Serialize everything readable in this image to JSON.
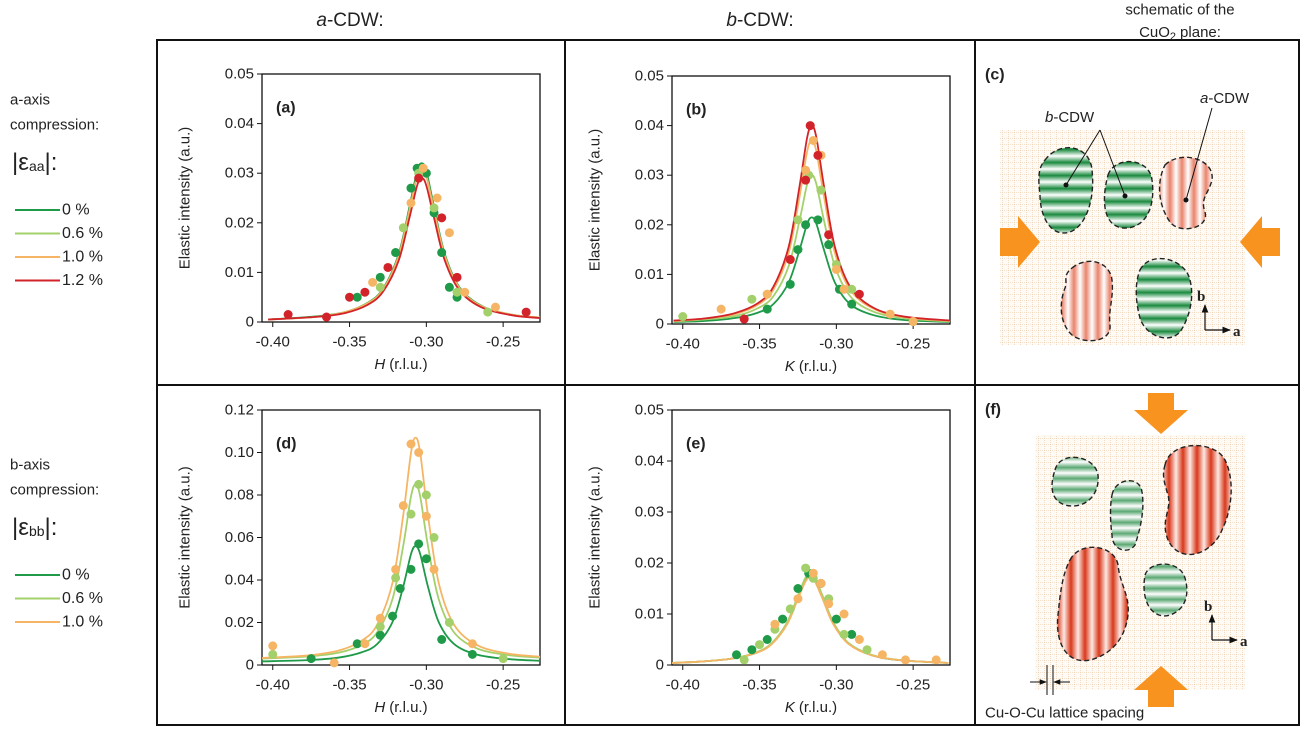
{
  "column_headers": [
    [
      "a",
      "-CDW:"
    ],
    [
      "b",
      "-CDW:"
    ]
  ],
  "schematic_header": [
    "schematic of the",
    "CuO",
    "2",
    "plane:"
  ],
  "legends": [
    {
      "lines": [
        "a-axis",
        "compression:"
      ],
      "symbol": [
        "|ε",
        "aa",
        "|:"
      ],
      "entries": [
        {
          "label": "0 %",
          "color": "#1e9a48"
        },
        {
          "label": "0.6 %",
          "color": "#a3d06a"
        },
        {
          "label": "1.0 %",
          "color": "#f5b565"
        },
        {
          "label": "1.2 %",
          "color": "#d2232a"
        }
      ]
    },
    {
      "lines": [
        "b-axis",
        "compression:"
      ],
      "symbol": [
        "|ε",
        "bb",
        "|:"
      ],
      "entries": [
        {
          "label": "0 %",
          "color": "#1e9a48"
        },
        {
          "label": "0.6 %",
          "color": "#a3d06a"
        },
        {
          "label": "1.0 %",
          "color": "#f5b565"
        }
      ]
    }
  ],
  "schematics": {
    "c": {
      "label": "(c)",
      "b_cdw": [
        "b",
        "-CDW"
      ],
      "a_cdw": [
        "a",
        "-CDW"
      ],
      "axis_b": "b",
      "axis_a": "a"
    },
    "f": {
      "label": "(f)",
      "axis_b": "b",
      "axis_a": "a",
      "spacing": "Cu-O-Cu lattice spacing"
    }
  },
  "chart_data": [
    {
      "type": "scatter",
      "panel_label": "(a)",
      "ylabel": "Elastic intensity (a.u.)",
      "xlabel": [
        "H",
        "(r.l.u.)"
      ],
      "xlim": [
        -0.407,
        -0.226
      ],
      "ylim": [
        0,
        0.05
      ],
      "xticks": [
        {
          "value": -0.4,
          "label": "-0.40"
        },
        -0.35,
        {
          "value": -0.3,
          "label": "-0.30"
        },
        -0.25
      ],
      "yticks": [
        0,
        0.01,
        0.02,
        0.03,
        0.04,
        0.05
      ],
      "fit_x": [
        -0.403,
        -0.373,
        -0.353,
        -0.338,
        -0.328,
        -0.318,
        -0.311,
        -0.306,
        -0.303,
        -0.3,
        -0.295,
        -0.288,
        -0.278,
        -0.263,
        -0.243,
        -0.226
      ],
      "series": [
        {
          "color": "#1e9a48",
          "x": [
            -0.345,
            -0.33,
            -0.32,
            -0.31,
            -0.306,
            -0.3,
            -0.295,
            -0.29,
            -0.285,
            -0.28
          ],
          "values": [
            0.005,
            0.009,
            0.014,
            0.027,
            0.031,
            0.03,
            0.022,
            0.014,
            0.007,
            0.005
          ],
          "fit_values": [
            0.0005,
            0.0011,
            0.002,
            0.0039,
            0.0068,
            0.0137,
            0.0232,
            0.0304,
            0.032,
            0.0304,
            0.0232,
            0.0137,
            0.0068,
            0.0031,
            0.0014,
            0.0009
          ]
        },
        {
          "color": "#a3d06a",
          "x": [
            -0.33,
            -0.315,
            -0.305,
            -0.295,
            -0.28,
            -0.26
          ],
          "values": [
            0.007,
            0.019,
            0.03,
            0.023,
            0.006,
            0.002
          ],
          "fit_values": [
            0.0005,
            0.001,
            0.002,
            0.0038,
            0.0066,
            0.0133,
            0.0225,
            0.0294,
            0.031,
            0.0294,
            0.0225,
            0.0133,
            0.0066,
            0.003,
            0.0014,
            0.0009
          ]
        },
        {
          "color": "#f5b565",
          "x": [
            -0.335,
            -0.31,
            -0.302,
            -0.293,
            -0.285,
            -0.275,
            -0.255
          ],
          "values": [
            0.008,
            0.024,
            0.031,
            0.025,
            0.018,
            0.006,
            0.003
          ],
          "fit_values": [
            0.0005,
            0.001,
            0.002,
            0.0038,
            0.0066,
            0.0133,
            0.0225,
            0.0294,
            0.031,
            0.0294,
            0.0225,
            0.0133,
            0.0066,
            0.003,
            0.0014,
            0.0009
          ]
        },
        {
          "color": "#d2232a",
          "x": [
            -0.39,
            -0.365,
            -0.35,
            -0.34,
            -0.325,
            -0.305,
            -0.29,
            -0.28,
            -0.235
          ],
          "values": [
            0.0015,
            0.001,
            0.005,
            0.006,
            0.011,
            0.029,
            0.021,
            0.009,
            0.002
          ],
          "fit_values": [
            0.0005,
            0.001,
            0.0018,
            0.0035,
            0.0062,
            0.0124,
            0.021,
            0.0275,
            0.029,
            0.0275,
            0.021,
            0.0124,
            0.0062,
            0.0028,
            0.0013,
            0.0008
          ]
        }
      ]
    },
    {
      "type": "scatter",
      "panel_label": "(b)",
      "ylabel": "Elastic intensity (a.u.)",
      "xlabel": [
        "K",
        "(r.l.u.)"
      ],
      "xlim": [
        -0.407,
        -0.226
      ],
      "ylim": [
        0,
        0.05
      ],
      "xticks": [
        {
          "value": -0.4,
          "label": "-0.40"
        },
        -0.35,
        {
          "value": -0.3,
          "label": "-0.30"
        },
        -0.25
      ],
      "yticks": [
        0,
        0.01,
        0.02,
        0.03,
        0.04,
        0.05
      ],
      "fit_x": [
        -0.406,
        -0.386,
        -0.366,
        -0.351,
        -0.341,
        -0.331,
        -0.324,
        -0.319,
        -0.316,
        -0.313,
        -0.308,
        -0.301,
        -0.291,
        -0.276,
        -0.256,
        -0.226
      ],
      "series": [
        {
          "color": "#1e9a48",
          "x": [
            -0.345,
            -0.33,
            -0.325,
            -0.32,
            -0.312,
            -0.305,
            -0.298,
            -0.29
          ],
          "values": [
            0.003,
            0.008,
            0.015,
            0.02,
            0.021,
            0.016,
            0.007,
            0.004
          ],
          "fit_values": [
            0.0004,
            0.0006,
            0.0012,
            0.0023,
            0.004,
            0.0084,
            0.0149,
            0.0202,
            0.0215,
            0.0202,
            0.0149,
            0.0084,
            0.004,
            0.0018,
            0.0008,
            0.0004
          ]
        },
        {
          "color": "#a3d06a",
          "x": [
            -0.4,
            -0.355,
            -0.345,
            -0.325,
            -0.318,
            -0.31,
            -0.3,
            -0.29,
            -0.25
          ],
          "values": [
            0.0015,
            0.005,
            0.006,
            0.021,
            0.03,
            0.027,
            0.012,
            0.007,
            0.0005
          ],
          "fit_values": [
            0.0005,
            0.0009,
            0.0016,
            0.0032,
            0.0056,
            0.0117,
            0.0208,
            0.0282,
            0.03,
            0.0282,
            0.0208,
            0.0117,
            0.0056,
            0.0025,
            0.0012,
            0.0005
          ]
        },
        {
          "color": "#f5b565",
          "x": [
            -0.375,
            -0.345,
            -0.33,
            -0.32,
            -0.315,
            -0.31,
            -0.3,
            -0.295,
            -0.265,
            -0.25
          ],
          "values": [
            0.003,
            0.006,
            0.013,
            0.031,
            0.037,
            0.034,
            0.011,
            0.007,
            0.002,
            0.0005
          ],
          "fit_values": [
            0.0006,
            0.0011,
            0.002,
            0.0039,
            0.0069,
            0.0144,
            0.0256,
            0.0348,
            0.037,
            0.0348,
            0.0256,
            0.0144,
            0.0069,
            0.0031,
            0.0014,
            0.0006
          ]
        },
        {
          "color": "#d2232a",
          "x": [
            -0.36,
            -0.33,
            -0.32,
            -0.317,
            -0.312,
            -0.305,
            -0.285
          ],
          "values": [
            0.001,
            0.013,
            0.029,
            0.04,
            0.034,
            0.018,
            0.006
          ],
          "fit_values": [
            0.0007,
            0.0011,
            0.0022,
            0.0042,
            0.0075,
            0.0156,
            0.0277,
            0.0376,
            0.04,
            0.0376,
            0.0277,
            0.0156,
            0.0075,
            0.0033,
            0.0015,
            0.0007
          ]
        }
      ]
    },
    {
      "type": "scatter",
      "panel_label": "(d)",
      "ylabel": "Elastic intensity (a.u.)",
      "xlabel": [
        "H",
        "(r.l.u.)"
      ],
      "xlim": [
        -0.407,
        -0.226
      ],
      "ylim": [
        0,
        0.12
      ],
      "xticks": [
        {
          "value": -0.4,
          "label": "-0.40"
        },
        -0.35,
        {
          "value": -0.3,
          "label": "-0.30"
        },
        -0.25
      ],
      "yticks": [
        0,
        0.02,
        0.04,
        0.06,
        0.08,
        {
          "value": 0.1,
          "label": "0.10"
        },
        0.12
      ],
      "fit_x": [
        -0.407,
        -0.377,
        -0.357,
        -0.342,
        -0.332,
        -0.322,
        -0.315,
        -0.31,
        -0.307,
        -0.304,
        -0.299,
        -0.292,
        -0.282,
        -0.267,
        -0.247,
        -0.226
      ],
      "series": [
        {
          "color": "#1e9a48",
          "x": [
            -0.375,
            -0.345,
            -0.33,
            -0.322,
            -0.317,
            -0.31,
            -0.305,
            -0.3,
            -0.29,
            -0.27
          ],
          "values": [
            0.003,
            0.01,
            0.014,
            0.023,
            0.036,
            0.045,
            0.057,
            0.05,
            0.012,
            0.005
          ],
          "fit_values": [
            0.0017,
            0.0023,
            0.0035,
            0.006,
            0.0099,
            0.0203,
            0.037,
            0.0522,
            0.056,
            0.0522,
            0.037,
            0.0203,
            0.0099,
            0.0049,
            0.0028,
            0.002
          ]
        },
        {
          "color": "#a3d06a",
          "x": [
            -0.4,
            -0.33,
            -0.32,
            -0.31,
            -0.305,
            -0.3,
            -0.295,
            -0.285,
            -0.25
          ],
          "values": [
            0.005,
            0.018,
            0.041,
            0.071,
            0.085,
            0.08,
            0.06,
            0.02,
            0.003
          ],
          "fit_values": [
            0.003,
            0.004,
            0.0058,
            0.0095,
            0.0154,
            0.0311,
            0.0563,
            0.0793,
            0.085,
            0.0793,
            0.0563,
            0.0311,
            0.0154,
            0.0078,
            0.0047,
            0.0035
          ]
        },
        {
          "color": "#f5b565",
          "x": [
            -0.4,
            -0.36,
            -0.34,
            -0.33,
            -0.32,
            -0.315,
            -0.31,
            -0.305,
            -0.3,
            -0.295,
            -0.27
          ],
          "values": [
            0.009,
            0.001,
            0.01,
            0.022,
            0.045,
            0.075,
            0.104,
            0.1,
            0.07,
            0.045,
            0.01
          ],
          "fit_values": [
            0.0033,
            0.0045,
            0.0068,
            0.0115,
            0.019,
            0.0388,
            0.0707,
            0.0998,
            0.107,
            0.0998,
            0.0707,
            0.0388,
            0.019,
            0.0094,
            0.0054,
            0.0039
          ]
        }
      ]
    },
    {
      "type": "scatter",
      "panel_label": "(e)",
      "ylabel": "Elastic intensity (a.u.)",
      "xlabel": [
        "K",
        "(r.l.u.)"
      ],
      "xlim": [
        -0.407,
        -0.226
      ],
      "ylim": [
        0,
        0.05
      ],
      "xticks": [
        {
          "value": -0.4,
          "label": "-0.40"
        },
        -0.35,
        {
          "value": -0.3,
          "label": "-0.30"
        },
        -0.25
      ],
      "yticks": [
        0,
        0.01,
        0.02,
        0.03,
        0.04,
        0.05
      ],
      "fit_x": [
        -0.407,
        -0.387,
        -0.367,
        -0.352,
        -0.342,
        -0.332,
        -0.325,
        -0.32,
        -0.317,
        -0.314,
        -0.309,
        -0.302,
        -0.292,
        -0.277,
        -0.257,
        -0.227
      ],
      "series": [
        {
          "color": "#1e9a48",
          "x": [
            -0.365,
            -0.355,
            -0.345,
            -0.335,
            -0.325,
            -0.318,
            -0.31,
            -0.3,
            -0.29
          ],
          "values": [
            0.002,
            0.003,
            0.005,
            0.009,
            0.015,
            0.018,
            0.016,
            0.009,
            0.006
          ],
          "fit_values": [
            0.0004,
            0.0007,
            0.0013,
            0.0024,
            0.0042,
            0.0082,
            0.0132,
            0.0167,
            0.0175,
            0.0167,
            0.0132,
            0.0082,
            0.0042,
            0.0019,
            0.0009,
            0.0004
          ]
        },
        {
          "color": "#a3d06a",
          "x": [
            -0.36,
            -0.35,
            -0.34,
            -0.33,
            -0.32,
            -0.315,
            -0.305,
            -0.295,
            -0.28
          ],
          "values": [
            0.001,
            0.004,
            0.007,
            0.011,
            0.019,
            0.017,
            0.013,
            0.006,
            0.003
          ],
          "fit_values": [
            0.0004,
            0.0007,
            0.0013,
            0.0025,
            0.0043,
            0.0084,
            0.0136,
            0.0172,
            0.018,
            0.0172,
            0.0136,
            0.0084,
            0.0043,
            0.002,
            0.0009,
            0.0004
          ]
        },
        {
          "color": "#f5b565",
          "x": [
            -0.34,
            -0.325,
            -0.315,
            -0.31,
            -0.305,
            -0.295,
            -0.285,
            -0.27,
            -0.255,
            -0.235
          ],
          "values": [
            0.008,
            0.013,
            0.018,
            0.016,
            0.012,
            0.01,
            0.005,
            0.002,
            0.001,
            0.001
          ],
          "fit_values": [
            0.0004,
            0.0007,
            0.0013,
            0.0024,
            0.0041,
            0.008,
            0.013,
            0.0164,
            0.0172,
            0.0164,
            0.013,
            0.008,
            0.0041,
            0.0019,
            0.0009,
            0.0004
          ]
        }
      ]
    }
  ]
}
